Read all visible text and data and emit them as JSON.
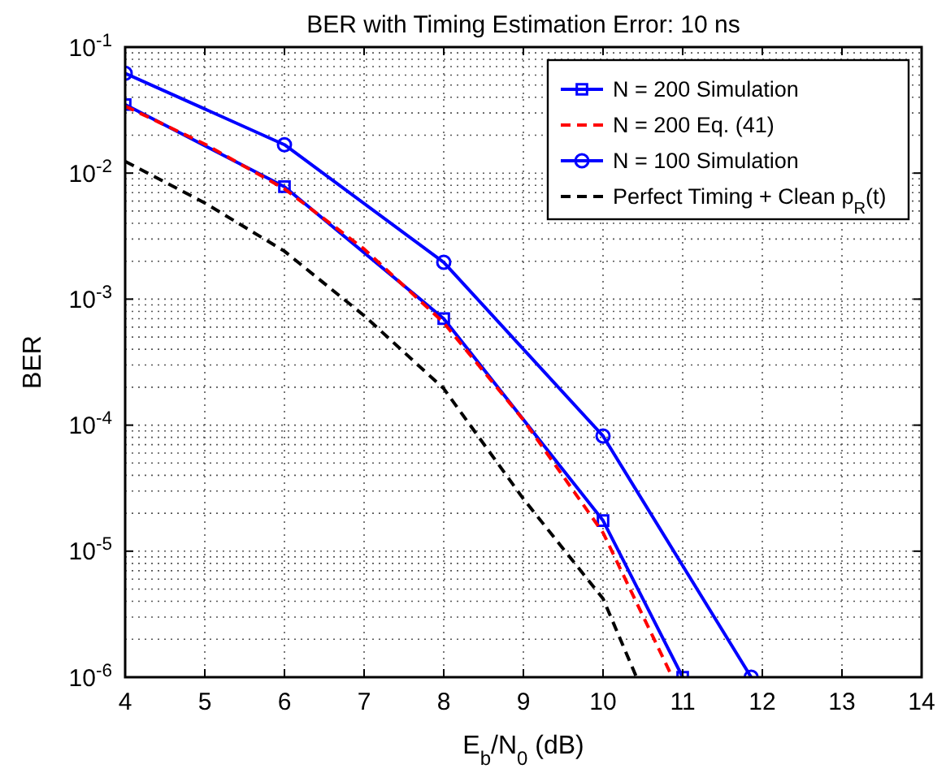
{
  "chart_data": {
    "type": "line",
    "title": "BER with Timing Estimation Error: 10 ns",
    "xlabel": "E$_{b}$/N$_{0}$ (dB)",
    "ylabel": "BER",
    "log": "y",
    "grid": true,
    "legend": "top right",
    "xlim": [
      4,
      14
    ],
    "xticks": [
      4,
      5,
      6,
      7,
      8,
      9,
      10,
      11,
      12,
      13,
      14
    ],
    "ylim": [
      1e-06,
      0.1
    ],
    "yticks": [
      {
        "value": 1e-06,
        "label": "10$^{-6}$"
      },
      {
        "value": 1e-05,
        "label": "10$^{-5}$"
      },
      {
        "value": 0.0001,
        "label": "10$^{-4}$"
      },
      {
        "value": 0.001,
        "label": "10$^{-3}$"
      },
      {
        "value": 0.01,
        "label": "10$^{-2}$"
      },
      {
        "value": 0.1,
        "label": "10$^{-1}$"
      }
    ],
    "series": [
      {
        "name": "N = 200 Simulation",
        "color": "#0000ff",
        "marker": "square",
        "line_style": "solid",
        "x": [
          4,
          6,
          8,
          10,
          11
        ],
        "values": [
          0.035,
          0.0078,
          0.0007,
          1.75e-05,
          1e-06
        ]
      },
      {
        "name": "N = 200 Eq. (41)",
        "color": "#ff0000",
        "marker": "none",
        "line_style": "dashed",
        "x": [
          4,
          5,
          6,
          7,
          8,
          9,
          10,
          10.87
        ],
        "values": [
          0.034,
          0.017,
          0.0075,
          0.0025,
          0.00065,
          0.00011,
          1.4e-05,
          1e-06
        ]
      },
      {
        "name": "N = 100 Simulation",
        "color": "#0000ff",
        "marker": "circle",
        "line_style": "solid",
        "x": [
          4,
          6,
          8,
          10,
          11.86
        ],
        "values": [
          0.062,
          0.0168,
          0.00196,
          8.2e-05,
          1e-06
        ]
      },
      {
        "name": "Perfect Timing + Clean p$_{R}$(t)",
        "color": "#000000",
        "marker": "none",
        "line_style": "dashed",
        "x": [
          4,
          5,
          6,
          7,
          8,
          9,
          10,
          10.42
        ],
        "values": [
          0.0124,
          0.0058,
          0.0024,
          0.00074,
          0.000195,
          2.6e-05,
          4.2e-06,
          1e-06
        ]
      }
    ]
  }
}
